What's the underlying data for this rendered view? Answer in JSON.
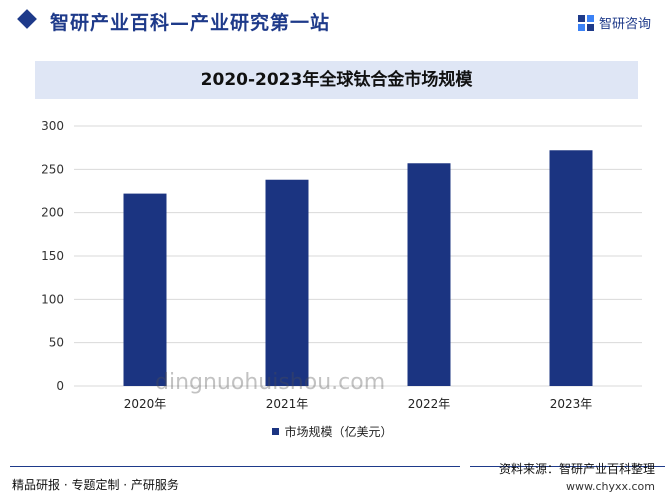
{
  "header": {
    "site_title": "智研产业百科—产业研究第一站",
    "brand_name": "智研咨询"
  },
  "chart_data": {
    "type": "bar",
    "title": "2020-2023年全球钛合金市场规模",
    "categories": [
      "2020年",
      "2021年",
      "2022年",
      "2023年"
    ],
    "series": [
      {
        "name": "市场规模（亿美元）",
        "values": [
          222,
          238,
          257,
          272
        ],
        "color": "#1b3481"
      }
    ],
    "ylim": [
      0,
      300
    ],
    "yticks": [
      0,
      50,
      100,
      150,
      200,
      250,
      300
    ],
    "grid": true,
    "legend_position": "bottom"
  },
  "watermark_text": "dingnuohuishou.com",
  "footer": {
    "left_text": "精品研报 · 专题定制 · 产研服务",
    "source_text": "资料来源：智研产业百科整理",
    "url_text": "www.chyxx.com"
  }
}
